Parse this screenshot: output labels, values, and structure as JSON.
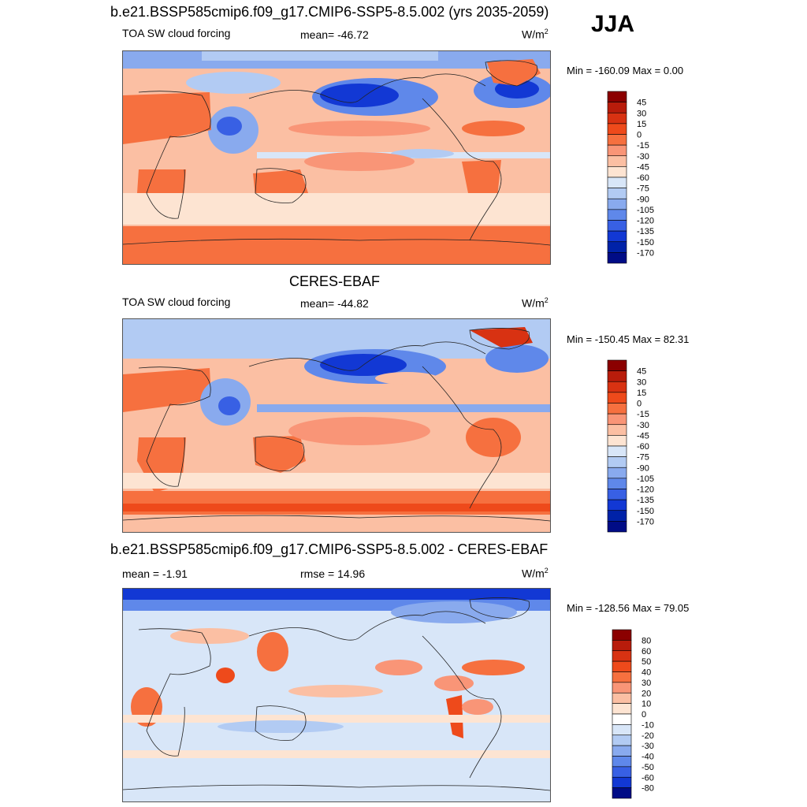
{
  "season": "JJA",
  "panels": [
    {
      "title": "b.e21.BSSP585cmip6.f09_g17.CMIP6-SSP5-8.5.002 (yrs 2035-2059)",
      "left": "TOA SW cloud forcing",
      "center": "mean= -46.72",
      "units": "W/m",
      "units_sup": "2",
      "minmax": "Min = -160.09 Max =   0.00",
      "cbar_labels": [
        "45",
        "30",
        "15",
        "0",
        "-15",
        "-30",
        "-45",
        "-60",
        "-75",
        "-90",
        "-105",
        "-120",
        "-135",
        "-150",
        "-170"
      ],
      "cbar_colors": [
        "#8b0000",
        "#b81c0b",
        "#d83212",
        "#ee4a1b",
        "#f6703f",
        "#f99577",
        "#fbbfa3",
        "#fde4d2",
        "#d8e6f8",
        "#b2cbf3",
        "#89aaee",
        "#5f88ea",
        "#3860e4",
        "#1238d4",
        "#0022a8",
        "#000c86"
      ]
    },
    {
      "title": "CERES-EBAF",
      "left": "TOA SW cloud forcing",
      "center": "mean= -44.82",
      "units": "W/m",
      "units_sup": "2",
      "minmax": "Min = -150.45 Max =  82.31",
      "cbar_labels": [
        "45",
        "30",
        "15",
        "0",
        "-15",
        "-30",
        "-45",
        "-60",
        "-75",
        "-90",
        "-105",
        "-120",
        "-135",
        "-150",
        "-170"
      ],
      "cbar_colors": [
        "#8b0000",
        "#b81c0b",
        "#d83212",
        "#ee4a1b",
        "#f6703f",
        "#f99577",
        "#fbbfa3",
        "#fde4d2",
        "#d8e6f8",
        "#b2cbf3",
        "#89aaee",
        "#5f88ea",
        "#3860e4",
        "#1238d4",
        "#0022a8",
        "#000c86"
      ]
    },
    {
      "title": "b.e21.BSSP585cmip6.f09_g17.CMIP6-SSP5-8.5.002 - CERES-EBAF",
      "left": "mean =  -1.91",
      "center": "rmse =  14.96",
      "units": "W/m",
      "units_sup": "2",
      "minmax": "Min = -128.56 Max =  79.05",
      "cbar_labels": [
        "80",
        "60",
        "50",
        "40",
        "30",
        "20",
        "10",
        "0",
        "-10",
        "-20",
        "-30",
        "-40",
        "-50",
        "-60",
        "-80"
      ],
      "cbar_colors": [
        "#8b0000",
        "#b81c0b",
        "#d83212",
        "#ee4a1b",
        "#f6703f",
        "#f99577",
        "#fbbfa3",
        "#fde4d2",
        "#ffffff",
        "#d8e6f8",
        "#b2cbf3",
        "#89aaee",
        "#5f88ea",
        "#3860e4",
        "#1238d4",
        "#000c86"
      ]
    }
  ]
}
